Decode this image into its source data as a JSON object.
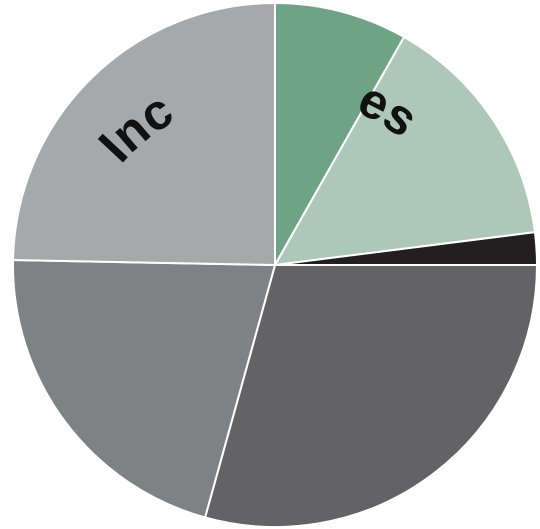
{
  "chart_data": {
    "type": "pie",
    "title_fragments": [
      "Inc",
      "es"
    ],
    "slices": [
      {
        "value": 8.2,
        "color": "#6fa386"
      },
      {
        "value": 14.8,
        "color": "#adc8b9"
      },
      {
        "value": 2.0,
        "color": "#231f20"
      },
      {
        "value": 29.3,
        "color": "#636365"
      },
      {
        "value": 21.0,
        "color": "#808184"
      },
      {
        "value": 24.7,
        "color": "#a7a8aa"
      }
    ],
    "start": "12 o'clock",
    "direction": "clockwise",
    "legend": "none",
    "data_labels": "none"
  }
}
